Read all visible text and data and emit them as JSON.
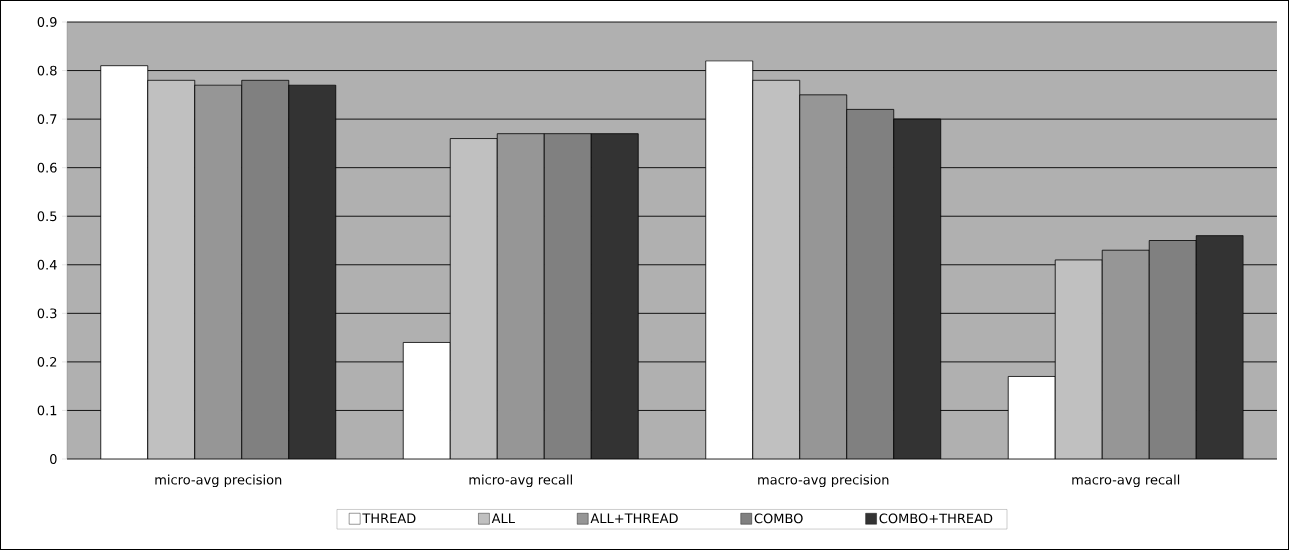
{
  "chart_data": {
    "type": "bar",
    "categories": [
      "micro-avg precision",
      "micro-avg recall",
      "macro-avg precision",
      "macro-avg recall"
    ],
    "series": [
      {
        "name": "THREAD",
        "color": "#ffffff",
        "values": [
          0.81,
          0.24,
          0.82,
          0.17
        ]
      },
      {
        "name": "ALL",
        "color": "#c0c0c0",
        "values": [
          0.78,
          0.66,
          0.78,
          0.41
        ]
      },
      {
        "name": "ALL+THREAD",
        "color": "#969696",
        "values": [
          0.77,
          0.67,
          0.75,
          0.43
        ]
      },
      {
        "name": "COMBO",
        "color": "#808080",
        "values": [
          0.78,
          0.67,
          0.72,
          0.45
        ]
      },
      {
        "name": "COMBO+THREAD",
        "color": "#333333",
        "values": [
          0.77,
          0.67,
          0.7,
          0.46
        ]
      }
    ],
    "ylim": [
      0,
      0.9
    ],
    "yticks": [
      0,
      0.1,
      0.2,
      0.3,
      0.4,
      0.5,
      0.6,
      0.7,
      0.8,
      0.9
    ],
    "grid": "y",
    "legend": "bottom"
  }
}
